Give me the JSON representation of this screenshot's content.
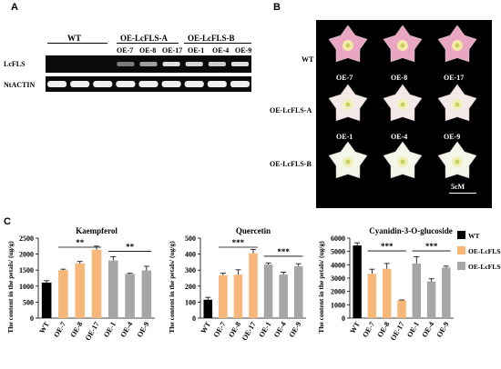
{
  "panel_a": {
    "letter": "A",
    "group_wt": "WT",
    "group_a": "OE-LcFLS-A",
    "group_b": "OE-LcFLS-B",
    "lanes": [
      "OE-7",
      "OE-8",
      "OE-17",
      "OE-1",
      "OE-4",
      "OE-9"
    ],
    "row_gene": "LcFLS",
    "row_ref": "NtACTIN",
    "lcfls_intensity": [
      0,
      0,
      0,
      0.35,
      0.55,
      0.9,
      0.85,
      0.8,
      0.9
    ],
    "actin_intensity": [
      1,
      1,
      1,
      1,
      1,
      1,
      1,
      1,
      1
    ]
  },
  "panel_b": {
    "letter": "B",
    "row_labels": [
      "WT",
      "OE-LcFLS-A",
      "OE-LcFLS-B"
    ],
    "flower_labels_row2": [
      "OE-7",
      "OE-8",
      "OE-17"
    ],
    "flower_labels_row3": [
      "OE-1",
      "OE-4",
      "OE-9"
    ],
    "scale_label": "5cM",
    "flower_colors": [
      "#e9a6c2",
      "#f3e9e6",
      "#f5f6ea"
    ]
  },
  "panel_c": {
    "letter": "C",
    "ylabel": "The content in the petals/ (ug/g)",
    "legend": [
      "WT",
      "OE-LcFLS-A",
      "OE-LcFLS-B"
    ]
  },
  "colors": {
    "wt": "#000000",
    "oe_a": "#f6b779",
    "oe_b": "#a6a6a6",
    "photo_bg": "#000000"
  },
  "chart_data": [
    {
      "type": "bar",
      "title": "Kaempferol",
      "categories": [
        "WT",
        "OE-7",
        "OE-8",
        "OE-17",
        "OE-1",
        "OE-4",
        "OE-9"
      ],
      "values": [
        1110,
        1500,
        1710,
        2140,
        1800,
        1380,
        1490
      ],
      "errors": [
        60,
        30,
        60,
        110,
        120,
        20,
        130
      ],
      "ylim": [
        0,
        2500
      ],
      "yticks": [
        0,
        500,
        1000,
        1500,
        2000,
        2500
      ],
      "significance": [
        "**",
        "**"
      ]
    },
    {
      "type": "bar",
      "title": "Quercetin",
      "categories": [
        "WT",
        "OE-7",
        "OE-8",
        "OE-17",
        "OE-1",
        "OE-4",
        "OE-9"
      ],
      "values": [
        115,
        268,
        272,
        405,
        335,
        272,
        325
      ],
      "errors": [
        15,
        12,
        30,
        25,
        10,
        15,
        15
      ],
      "ylim": [
        0,
        500
      ],
      "yticks": [
        0,
        100,
        200,
        300,
        400,
        500
      ],
      "significance": [
        "***",
        "***"
      ]
    },
    {
      "type": "bar",
      "title": "Cyanidin-3-O-glucoside",
      "categories": [
        "WT",
        "OE-7",
        "OE-8",
        "OE-17",
        "OE-1",
        "OE-4",
        "OE-9"
      ],
      "values": [
        5450,
        3320,
        3700,
        1320,
        4100,
        2750,
        3800
      ],
      "errors": [
        200,
        350,
        400,
        40,
        500,
        200,
        100
      ],
      "ylim": [
        0,
        6000
      ],
      "yticks": [
        0,
        1000,
        2000,
        3000,
        4000,
        5000,
        6000
      ],
      "significance": [
        "***",
        "***"
      ]
    }
  ]
}
